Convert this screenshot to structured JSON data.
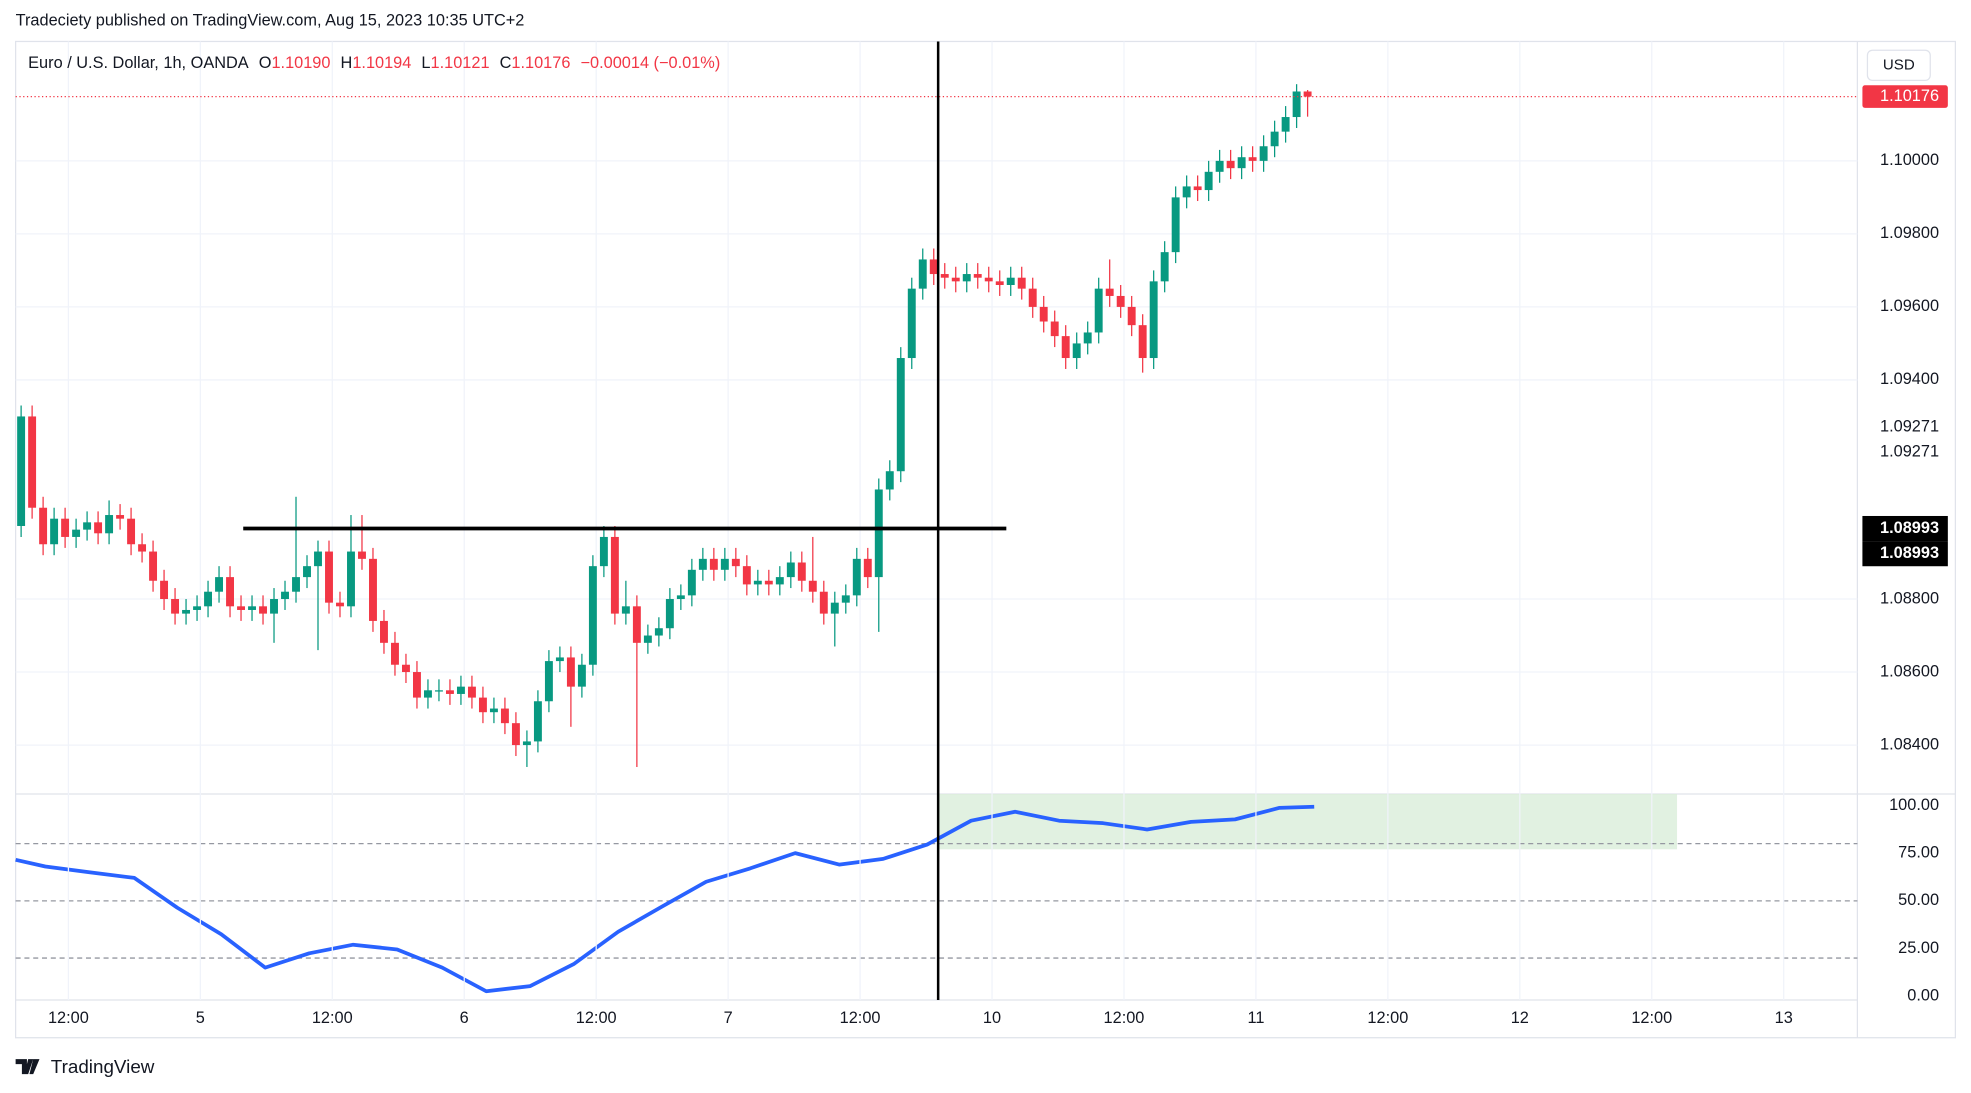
{
  "header": {
    "publisher": "Tradeciety published on TradingView.com, Aug 15, 2023 10:35 UTC+2",
    "currency": "USD",
    "logo": "TradingView"
  },
  "chart_data": [
    {
      "type": "candlestick",
      "title": "Euro / U.S. Dollar, 1h, OANDA",
      "ohlc": [
        {
          "label": "O",
          "value": "1.10190"
        },
        {
          "label": "H",
          "value": "1.10194"
        },
        {
          "label": "L",
          "value": "1.10121"
        },
        {
          "label": "C",
          "value": "1.10176"
        }
      ],
      "change": "−0.00014 (−0.01%)",
      "open": [
        1.09,
        1.093,
        1.0905,
        1.0895,
        1.0902,
        1.0897,
        1.0899,
        1.0901,
        1.0898,
        1.0903,
        1.0902,
        1.0895,
        1.0893,
        1.0885,
        1.088,
        1.0876,
        1.0877,
        1.0878,
        1.0882,
        1.0886,
        1.0878,
        1.0877,
        1.0878,
        1.0876,
        1.088,
        1.0882,
        1.0886,
        1.0889,
        1.0893,
        1.0879,
        1.0878,
        1.0893,
        1.0891,
        1.0874,
        1.0868,
        1.0862,
        1.086,
        1.0853,
        1.0855,
        1.0855,
        1.0854,
        1.0856,
        1.0853,
        1.0849,
        1.085,
        1.0846,
        1.084,
        1.0841,
        1.0852,
        1.0863,
        1.0864,
        1.0856,
        1.0862,
        1.0889,
        1.0897,
        1.0876,
        1.0878,
        1.0868,
        1.087,
        1.0872,
        1.088,
        1.0881,
        1.0888,
        1.0891,
        1.0888,
        1.0891,
        1.0889,
        1.0884,
        1.0885,
        1.0884,
        1.0886,
        1.089,
        1.0885,
        1.0882,
        1.0876,
        1.0879,
        1.0881,
        1.0891,
        1.0886,
        1.091,
        1.0915,
        1.0946,
        1.0965,
        1.0973,
        1.0969,
        1.0968,
        1.0967,
        1.0969,
        1.0968,
        1.0967,
        1.0966,
        1.0968,
        1.0965,
        1.096,
        1.0956,
        1.0952,
        1.0946,
        1.095,
        1.0953,
        1.0965,
        1.0963,
        1.096,
        1.0955,
        1.0946,
        1.0967,
        1.0975,
        1.099,
        1.0993,
        1.0992,
        1.0997,
        1.1,
        1.0998,
        1.1001,
        1.1,
        1.1004,
        1.1008,
        1.1012,
        1.1019
      ],
      "high": [
        1.0933,
        1.0933,
        1.0908,
        1.0905,
        1.0905,
        1.0902,
        1.0904,
        1.0904,
        1.0907,
        1.0906,
        1.0905,
        1.0898,
        1.0896,
        1.0888,
        1.0883,
        1.088,
        1.0881,
        1.0885,
        1.0889,
        1.0889,
        1.0881,
        1.0881,
        1.0881,
        1.0883,
        1.0885,
        1.0908,
        1.0892,
        1.0896,
        1.0896,
        1.0882,
        1.0903,
        1.0903,
        1.0894,
        1.0877,
        1.0871,
        1.0865,
        1.0863,
        1.0858,
        1.0858,
        1.0858,
        1.0859,
        1.0859,
        1.0856,
        1.0853,
        1.0853,
        1.0849,
        1.0844,
        1.0855,
        1.0866,
        1.0867,
        1.0867,
        1.0865,
        1.0892,
        1.09,
        1.09,
        1.0885,
        1.0881,
        1.0873,
        1.0875,
        1.0883,
        1.0884,
        1.0891,
        1.0894,
        1.0894,
        1.0894,
        1.0894,
        1.0892,
        1.0888,
        1.0888,
        1.0889,
        1.0893,
        1.0893,
        1.0897,
        1.0885,
        1.0882,
        1.0884,
        1.0894,
        1.0894,
        1.0913,
        1.0918,
        1.0949,
        1.0968,
        1.0976,
        1.0976,
        1.0972,
        1.0971,
        1.0972,
        1.0972,
        1.0971,
        1.097,
        1.0971,
        1.0971,
        1.0968,
        1.0963,
        1.0959,
        1.0955,
        1.0953,
        1.0956,
        1.0968,
        1.0973,
        1.0966,
        1.0963,
        1.0958,
        1.097,
        1.0978,
        1.0993,
        1.0996,
        1.0996,
        1.1,
        1.1003,
        1.1003,
        1.1004,
        1.1004,
        1.1007,
        1.1011,
        1.1015,
        1.1021,
        1.10194
      ],
      "low": [
        1.0897,
        1.0902,
        1.0892,
        1.0892,
        1.0894,
        1.0894,
        1.0896,
        1.0895,
        1.0895,
        1.0899,
        1.0892,
        1.089,
        1.0882,
        1.0877,
        1.0873,
        1.0873,
        1.0874,
        1.0875,
        1.0879,
        1.0875,
        1.0874,
        1.0874,
        1.0873,
        1.0868,
        1.0877,
        1.0879,
        1.0883,
        1.0866,
        1.0876,
        1.0875,
        1.0875,
        1.0888,
        1.0871,
        1.0865,
        1.0859,
        1.0857,
        1.085,
        1.085,
        1.0852,
        1.0851,
        1.0851,
        1.085,
        1.0846,
        1.0846,
        1.0843,
        1.0837,
        1.0834,
        1.0838,
        1.0849,
        1.086,
        1.0845,
        1.0853,
        1.0859,
        1.0886,
        1.0873,
        1.0873,
        1.0834,
        1.0865,
        1.0867,
        1.0869,
        1.0877,
        1.0878,
        1.0885,
        1.0885,
        1.0885,
        1.0886,
        1.0881,
        1.0881,
        1.0881,
        1.0881,
        1.0883,
        1.0882,
        1.0879,
        1.0873,
        1.0867,
        1.0876,
        1.0878,
        1.0883,
        1.0871,
        1.0907,
        1.0912,
        1.0943,
        1.0962,
        1.0966,
        1.0965,
        1.0964,
        1.0964,
        1.0965,
        1.0964,
        1.0963,
        1.0963,
        1.0962,
        1.0957,
        1.0953,
        1.0949,
        1.0943,
        1.0943,
        1.0947,
        1.095,
        1.096,
        1.0957,
        1.0952,
        1.0942,
        1.0943,
        1.0964,
        1.0972,
        1.0987,
        1.0989,
        1.0989,
        1.0994,
        1.0995,
        1.0995,
        1.0997,
        1.0997,
        1.1001,
        1.1005,
        1.1009,
        1.10121
      ],
      "close": [
        1.093,
        1.0905,
        1.0895,
        1.0902,
        1.0897,
        1.0899,
        1.0901,
        1.0898,
        1.0903,
        1.0902,
        1.0895,
        1.0893,
        1.0885,
        1.088,
        1.0876,
        1.0877,
        1.0878,
        1.0882,
        1.0886,
        1.0878,
        1.0877,
        1.0878,
        1.0876,
        1.088,
        1.0882,
        1.0886,
        1.0889,
        1.0893,
        1.0879,
        1.0878,
        1.0893,
        1.0891,
        1.0874,
        1.0868,
        1.0862,
        1.086,
        1.0853,
        1.0855,
        1.0855,
        1.0854,
        1.0856,
        1.0853,
        1.0849,
        1.085,
        1.0846,
        1.084,
        1.0841,
        1.0852,
        1.0863,
        1.0864,
        1.0856,
        1.0862,
        1.0889,
        1.0897,
        1.0876,
        1.0878,
        1.0868,
        1.087,
        1.0872,
        1.088,
        1.0881,
        1.0888,
        1.0891,
        1.0888,
        1.0891,
        1.0889,
        1.0884,
        1.0885,
        1.0884,
        1.0886,
        1.089,
        1.0885,
        1.0882,
        1.0876,
        1.0879,
        1.0881,
        1.0891,
        1.0886,
        1.091,
        1.0915,
        1.0946,
        1.0965,
        1.0973,
        1.0969,
        1.0968,
        1.0967,
        1.0969,
        1.0968,
        1.0967,
        1.0966,
        1.0968,
        1.0965,
        1.096,
        1.0956,
        1.0952,
        1.0946,
        1.095,
        1.0953,
        1.0965,
        1.0963,
        1.096,
        1.0955,
        1.0946,
        1.0967,
        1.0975,
        1.099,
        1.0993,
        1.0992,
        1.0997,
        1.1,
        1.0998,
        1.1001,
        1.1,
        1.1004,
        1.1008,
        1.1012,
        1.1019,
        1.10176
      ],
      "up_color": "#089981",
      "down_color": "#f23645",
      "xlim": [
        -0.5,
        167
      ],
      "xticks": [
        {
          "value": 4.3,
          "label": "12:00"
        },
        {
          "value": 16.3,
          "label": "5"
        },
        {
          "value": 28.3,
          "label": "12:00"
        },
        {
          "value": 40.3,
          "label": "6"
        },
        {
          "value": 52.3,
          "label": "12:00"
        },
        {
          "value": 64.3,
          "label": "7"
        },
        {
          "value": 76.3,
          "label": "12:00"
        },
        {
          "value": 88.3,
          "label": "10"
        },
        {
          "value": 100.3,
          "label": "12:00"
        },
        {
          "value": 112.3,
          "label": "11"
        },
        {
          "value": 124.3,
          "label": "12:00"
        },
        {
          "value": 136.3,
          "label": "12"
        },
        {
          "value": 148.3,
          "label": "12:00"
        },
        {
          "value": 160.3,
          "label": "13"
        }
      ],
      "ylim": [
        1.08266,
        1.10327
      ],
      "yticks": [
        {
          "value": 1.084,
          "label": "1.08400"
        },
        {
          "value": 1.086,
          "label": "1.08600"
        },
        {
          "value": 1.088,
          "label": "1.08800"
        },
        {
          "value": 1.094,
          "label": "1.09400"
        },
        {
          "value": 1.096,
          "label": "1.09600"
        },
        {
          "value": 1.098,
          "label": "1.09800"
        },
        {
          "value": 1.1,
          "label": "1.10000"
        }
      ],
      "grid": true,
      "last_price": {
        "value": 1.10176,
        "label": "1.10176",
        "color": "#f23645"
      },
      "price_labels": [
        {
          "value": 1.09271,
          "label": "1.09271"
        },
        {
          "value": 1.09271,
          "label": "1.09271"
        }
      ],
      "price_tags": [
        {
          "value": 1.08993,
          "label": "1.08993"
        },
        {
          "value": 1.08993,
          "label": "1.08993"
        }
      ],
      "hline": {
        "value": 1.08993,
        "x": [
          20.2,
          89.6
        ]
      },
      "vline": 83.4
    },
    {
      "type": "line",
      "x": [
        -0.5,
        2.2,
        6.2,
        10.3,
        14.2,
        18.2,
        22.2,
        26.2,
        30.2,
        34.2,
        38.3,
        42.3,
        46.3,
        50.3,
        54.3,
        58.3,
        62.3,
        66.3,
        70.4,
        74.4,
        78.4,
        82.4,
        86.4,
        90.4,
        94.4,
        98.4,
        102.4,
        106.4,
        110.4,
        114.4,
        117.6
      ],
      "values": [
        71.5,
        68,
        65,
        62,
        46.4,
        32.5,
        15,
        22.5,
        27,
        24.5,
        15,
        2.6,
        5.3,
        17,
        33.8,
        47,
        60,
        67,
        75,
        69,
        72,
        79.5,
        92,
        96.7,
        92,
        90.7,
        87.4,
        91.4,
        92.7,
        98.7,
        99.3
      ],
      "color": "#2962ff",
      "xlim": [
        -0.5,
        167
      ],
      "ylim": [
        -2,
        106
      ],
      "yticks": [
        {
          "value": 100,
          "label": "100.00"
        },
        {
          "value": 75,
          "label": "75.00"
        },
        {
          "value": 50,
          "label": "50.00"
        },
        {
          "value": 25,
          "label": "25.00"
        },
        {
          "value": 0,
          "label": "0.00"
        }
      ],
      "levels": [
        80,
        50,
        20
      ],
      "zone": {
        "x": [
          83.4,
          150.6
        ],
        "y": [
          77,
          106
        ],
        "color": "#d9eed9"
      }
    }
  ]
}
